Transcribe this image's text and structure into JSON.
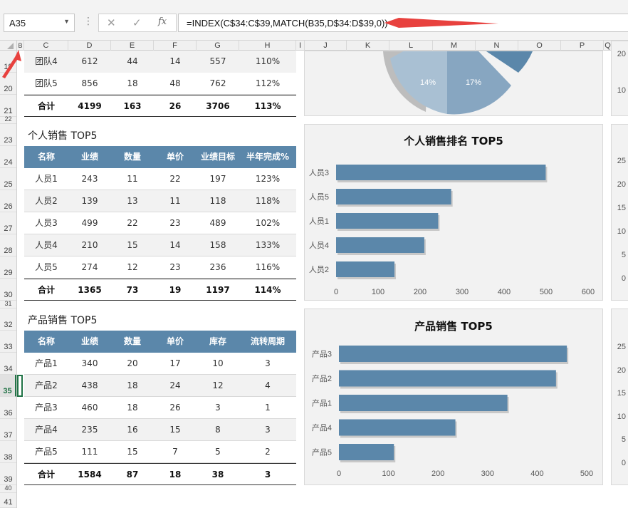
{
  "formula_bar": {
    "name_box": "A35",
    "formula": "=INDEX(C$34:C$39,MATCH(B35,D$34:D$39,0))",
    "fx_label": "fx"
  },
  "columns": [
    "B",
    "C",
    "D",
    "E",
    "F",
    "G",
    "H",
    "I",
    "J",
    "K",
    "L",
    "M",
    "N",
    "O",
    "P",
    "Q"
  ],
  "rows": [
    "19",
    "20",
    "21",
    "22",
    "23",
    "24",
    "25",
    "26",
    "27",
    "28",
    "29",
    "30",
    "31",
    "32",
    "33",
    "34",
    "35",
    "36",
    "37",
    "38",
    "39",
    "40",
    "41"
  ],
  "team_rows": [
    {
      "name": "团队4",
      "a": "612",
      "b": "44",
      "c": "14",
      "d": "557",
      "e": "110%"
    },
    {
      "name": "团队5",
      "a": "856",
      "b": "18",
      "c": "48",
      "d": "762",
      "e": "112%"
    }
  ],
  "team_total": {
    "name": "合计",
    "a": "4199",
    "b": "163",
    "c": "26",
    "d": "3706",
    "e": "113%"
  },
  "person_table": {
    "title": "个人销售 TOP5",
    "headers": [
      "名称",
      "业绩",
      "数量",
      "单价",
      "业绩目标",
      "半年完成%"
    ],
    "rows": [
      [
        "人员1",
        "243",
        "11",
        "22",
        "197",
        "123%"
      ],
      [
        "人员2",
        "139",
        "13",
        "11",
        "118",
        "118%"
      ],
      [
        "人员3",
        "499",
        "22",
        "23",
        "489",
        "102%"
      ],
      [
        "人员4",
        "210",
        "15",
        "14",
        "158",
        "133%"
      ],
      [
        "人员5",
        "274",
        "12",
        "23",
        "236",
        "116%"
      ]
    ],
    "total": [
      "合计",
      "1365",
      "73",
      "19",
      "1197",
      "114%"
    ]
  },
  "product_table": {
    "title": "产品销售 TOP5",
    "headers": [
      "名称",
      "业绩",
      "数量",
      "单价",
      "库存",
      "流转周期"
    ],
    "rows": [
      [
        "产品1",
        "340",
        "20",
        "17",
        "10",
        "3"
      ],
      [
        "产品2",
        "438",
        "18",
        "24",
        "12",
        "4"
      ],
      [
        "产品3",
        "460",
        "18",
        "26",
        "3",
        "1"
      ],
      [
        "产品4",
        "235",
        "16",
        "15",
        "8",
        "3"
      ],
      [
        "产品5",
        "111",
        "15",
        "7",
        "5",
        "2"
      ]
    ],
    "total": [
      "合计",
      "1584",
      "87",
      "18",
      "38",
      "3"
    ]
  },
  "pie_labels": [
    "14%",
    "17%"
  ],
  "right_ticks_top": [
    "20",
    "10"
  ],
  "right_ticks_mid": [
    "25",
    "20",
    "15",
    "10",
    "5",
    "0"
  ],
  "right_ticks_bot": [
    "25",
    "20",
    "15",
    "10",
    "5",
    "0"
  ],
  "colors": {
    "bar": "#5b87aa",
    "header": "#5b87aa",
    "arrow": "#e8413e"
  },
  "chart_data": [
    {
      "type": "bar",
      "title": "个人销售排名 TOP5",
      "categories": [
        "人员3",
        "人员5",
        "人员1",
        "人员4",
        "人员2"
      ],
      "values": [
        499,
        274,
        243,
        210,
        139
      ],
      "xlim": [
        0,
        600
      ],
      "ticks": [
        0,
        100,
        200,
        300,
        400,
        500,
        600
      ],
      "orientation": "horizontal"
    },
    {
      "type": "bar",
      "title": "产品销售 TOP5",
      "categories": [
        "产品3",
        "产品2",
        "产品1",
        "产品4",
        "产品5"
      ],
      "values": [
        460,
        438,
        340,
        235,
        111
      ],
      "xlim": [
        0,
        500
      ],
      "ticks": [
        0,
        100,
        200,
        300,
        400,
        500
      ],
      "orientation": "horizontal"
    }
  ]
}
